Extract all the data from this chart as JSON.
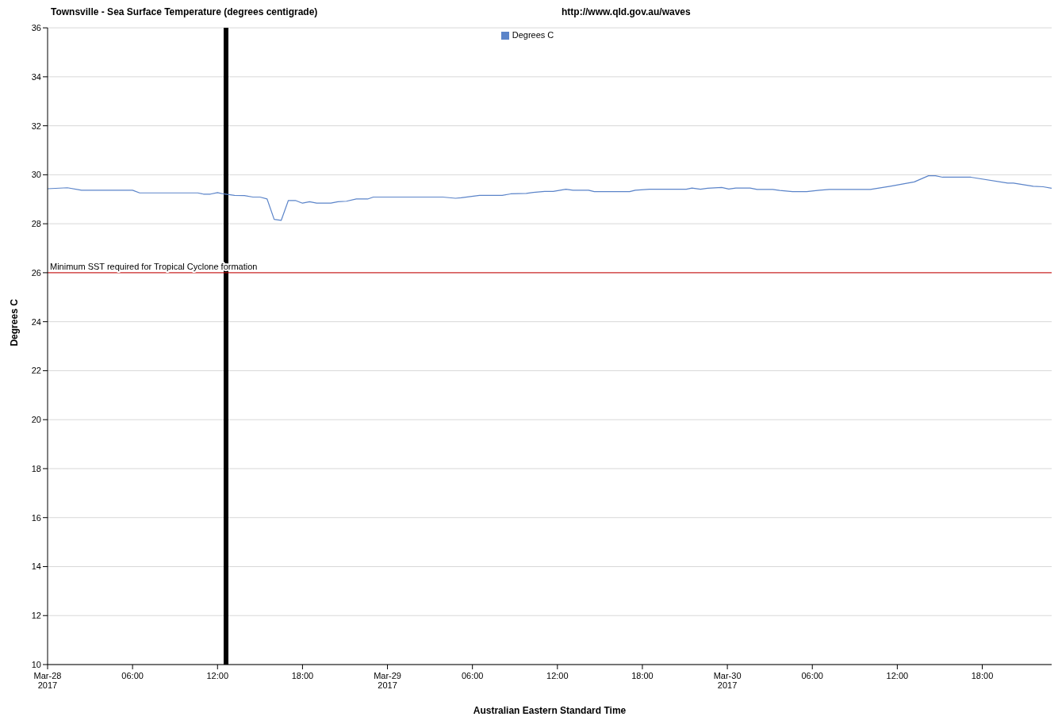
{
  "chart_data": {
    "type": "line",
    "title": "Townsville - Sea Surface Temperature (degrees centigrade)",
    "subtitle": "http://www.qld.gov.au/waves",
    "xlabel": "Australian Eastern Standard Time",
    "ylabel": "Degrees C",
    "x": [
      "2017-03-28T00:00",
      "2017-03-28T01:24",
      "2017-03-28T02:24",
      "2017-03-28T06:00",
      "2017-03-28T06:30",
      "2017-03-28T10:36",
      "2017-03-28T11:00",
      "2017-03-28T11:30",
      "2017-03-28T12:00",
      "2017-03-28T12:24",
      "2017-03-28T13:12",
      "2017-03-28T13:54",
      "2017-03-28T14:30",
      "2017-03-28T15:00",
      "2017-03-28T15:30",
      "2017-03-28T16:00",
      "2017-03-28T16:30",
      "2017-03-28T17:00",
      "2017-03-28T17:30",
      "2017-03-28T18:00",
      "2017-03-28T18:30",
      "2017-03-28T19:00",
      "2017-03-28T20:00",
      "2017-03-28T20:30",
      "2017-03-28T21:06",
      "2017-03-28T21:48",
      "2017-03-28T22:36",
      "2017-03-28T23:00",
      "2017-03-29T03:54",
      "2017-03-29T04:48",
      "2017-03-29T05:12",
      "2017-03-29T06:30",
      "2017-03-29T08:06",
      "2017-03-29T08:42",
      "2017-03-29T09:48",
      "2017-03-29T10:18",
      "2017-03-29T11:06",
      "2017-03-29T11:42",
      "2017-03-29T12:36",
      "2017-03-29T13:06",
      "2017-03-29T14:12",
      "2017-03-29T14:36",
      "2017-03-29T17:06",
      "2017-03-29T17:30",
      "2017-03-29T18:30",
      "2017-03-29T21:06",
      "2017-03-29T21:30",
      "2017-03-29T22:06",
      "2017-03-29T22:36",
      "2017-03-29T23:36",
      "2017-03-30T00:06",
      "2017-03-30T00:36",
      "2017-03-30T01:36",
      "2017-03-30T02:06",
      "2017-03-30T03:12",
      "2017-03-30T03:42",
      "2017-03-30T04:36",
      "2017-03-30T05:36",
      "2017-03-30T06:30",
      "2017-03-30T07:12",
      "2017-03-30T10:06",
      "2017-03-30T11:30",
      "2017-03-30T13:12",
      "2017-03-30T14:12",
      "2017-03-30T14:42",
      "2017-03-30T15:12",
      "2017-03-30T17:12",
      "2017-03-30T19:48",
      "2017-03-30T20:12",
      "2017-03-30T21:36",
      "2017-03-30T22:18",
      "2017-03-30T22:54"
    ],
    "series": [
      {
        "name": "Degrees C",
        "color": "#5b84c9",
        "values": [
          29.43,
          29.47,
          29.37,
          29.37,
          29.26,
          29.26,
          29.21,
          29.21,
          29.27,
          29.22,
          29.16,
          29.15,
          29.09,
          29.09,
          29.01,
          28.18,
          28.14,
          28.95,
          28.95,
          28.84,
          28.9,
          28.84,
          28.84,
          28.9,
          28.92,
          29.01,
          29.01,
          29.09,
          29.09,
          29.04,
          29.06,
          29.16,
          29.16,
          29.22,
          29.24,
          29.28,
          29.32,
          29.32,
          29.41,
          29.37,
          29.37,
          29.31,
          29.31,
          29.37,
          29.41,
          29.41,
          29.46,
          29.41,
          29.45,
          29.48,
          29.42,
          29.46,
          29.46,
          29.4,
          29.4,
          29.36,
          29.31,
          29.31,
          29.37,
          29.4,
          29.4,
          29.53,
          29.71,
          29.96,
          29.96,
          29.9,
          29.9,
          29.66,
          29.66,
          29.53,
          29.51,
          29.45
        ]
      }
    ],
    "xlim": [
      "2017-03-28T00:00",
      "2017-03-30T22:54"
    ],
    "xticks": [
      {
        "value": "2017-03-28T00:00",
        "label": "Mar-28\n2017"
      },
      {
        "value": "2017-03-28T06:00",
        "label": "06:00"
      },
      {
        "value": "2017-03-28T12:00",
        "label": "12:00"
      },
      {
        "value": "2017-03-28T18:00",
        "label": "18:00"
      },
      {
        "value": "2017-03-29T00:00",
        "label": "Mar-29\n2017"
      },
      {
        "value": "2017-03-29T06:00",
        "label": "06:00"
      },
      {
        "value": "2017-03-29T12:00",
        "label": "12:00"
      },
      {
        "value": "2017-03-29T18:00",
        "label": "18:00"
      },
      {
        "value": "2017-03-30T00:00",
        "label": "Mar-30\n2017"
      },
      {
        "value": "2017-03-30T06:00",
        "label": "06:00"
      },
      {
        "value": "2017-03-30T12:00",
        "label": "12:00"
      },
      {
        "value": "2017-03-30T18:00",
        "label": "18:00"
      }
    ],
    "ylim": [
      10,
      36
    ],
    "yticks": [
      10,
      12,
      14,
      16,
      18,
      20,
      22,
      24,
      26,
      28,
      30,
      32,
      34,
      36
    ],
    "ref_lines": [
      {
        "axis": "y",
        "value": 26,
        "label": "Minimum SST required for Tropical Cyclone formation",
        "color": "#cc0000"
      },
      {
        "axis": "x",
        "value": "2017-03-28T12:36",
        "label": null,
        "color": "#000000"
      }
    ],
    "grid": "y",
    "legend": "top",
    "marker": "none",
    "line_style": "solid"
  }
}
